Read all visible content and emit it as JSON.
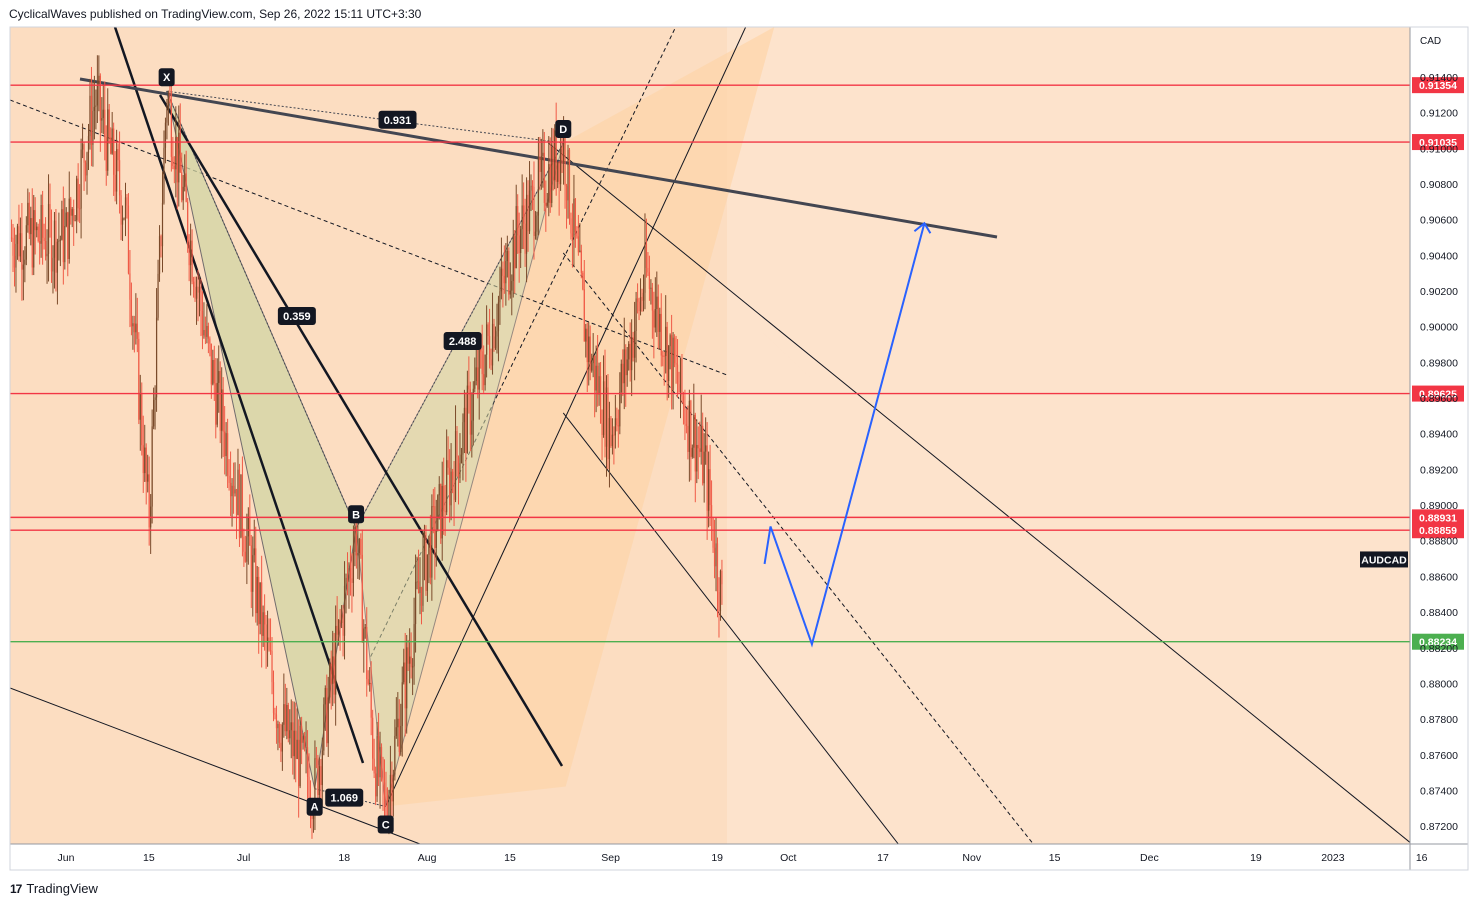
{
  "header": {
    "publisher_line": "CyclicalWaves published on TradingView.com, Sep 26, 2022 15:11 UTC+3:30"
  },
  "brand": {
    "label": "TradingView",
    "logo": "17"
  },
  "chart_data": {
    "type": "candlestick",
    "symbol": "AUDCAD",
    "currency": "CAD",
    "y_axis": {
      "ylim": [
        0.871,
        0.9168
      ],
      "ticks": [
        "0.87200",
        "0.87400",
        "0.87600",
        "0.87800",
        "0.88000",
        "0.88200",
        "0.88400",
        "0.88600",
        "0.88800",
        "0.89000",
        "0.89200",
        "0.89400",
        "0.89600",
        "0.89800",
        "0.90000",
        "0.90200",
        "0.90400",
        "0.90600",
        "0.90800",
        "0.91000",
        "0.91200",
        "0.91400"
      ],
      "tick_values": [
        0.872,
        0.874,
        0.876,
        0.878,
        0.88,
        0.882,
        0.884,
        0.886,
        0.888,
        0.89,
        0.892,
        0.894,
        0.896,
        0.898,
        0.9,
        0.902,
        0.904,
        0.906,
        0.908,
        0.91,
        0.912,
        0.914
      ]
    },
    "x_axis": {
      "ticks": [
        "Jun",
        "15",
        "Jul",
        "18",
        "Aug",
        "15",
        "Sep",
        "19",
        "Oct",
        "17",
        "Nov",
        "15",
        "Dec",
        "19",
        "2023",
        "16"
      ],
      "tick_days": [
        0,
        14,
        30,
        47,
        61,
        75,
        92,
        110,
        122,
        138,
        153,
        167,
        183,
        201,
        214,
        229
      ]
    },
    "price_lines": [
      {
        "label": "0.91354",
        "value": 0.91354,
        "color": "#f23645"
      },
      {
        "label": "0.91035",
        "value": 0.91035,
        "color": "#f23645"
      },
      {
        "label": "0.89625",
        "value": 0.89625,
        "color": "#f23645"
      },
      {
        "label": "0.88931",
        "value": 0.88931,
        "color": "#f23645"
      },
      {
        "label": "0.88859",
        "value": 0.88859,
        "color": "#f23645"
      },
      {
        "label": "0.88234",
        "value": 0.88234,
        "color": "#4caf50"
      }
    ],
    "symbol_tag": {
      "label": "AUDCAD",
      "value": 0.8874
    },
    "pattern_points": [
      {
        "label": "X",
        "day": 17,
        "value": 0.9132
      },
      {
        "label": "A",
        "day": 42,
        "value": 0.8741
      },
      {
        "label": "B",
        "day": 49,
        "value": 0.8887
      },
      {
        "label": "C",
        "day": 54,
        "value": 0.8731
      },
      {
        "label": "D",
        "day": 84,
        "value": 0.9103
      }
    ],
    "ratios": [
      {
        "label": "0.359",
        "day": 39,
        "value": 0.9006
      },
      {
        "label": "2.488",
        "day": 67,
        "value": 0.8992
      },
      {
        "label": "0.931",
        "day": 56,
        "value": 0.9116
      },
      {
        "label": "1.069",
        "day": 47,
        "value": 0.8736
      }
    ],
    "projection": [
      {
        "day": 118,
        "value": 0.8867
      },
      {
        "day": 119,
        "value": 0.8888
      },
      {
        "day": 126,
        "value": 0.8822
      },
      {
        "day": 145,
        "value": 0.9058
      }
    ],
    "colors": {
      "background": "#fde3cc",
      "channel_fill": "#fdd4a8",
      "pattern_fill": "#d2d6a4",
      "up_candle": "#7a4a2a",
      "down_candle": "#ef5a46",
      "projection": "#2962ff",
      "trendline": "#434651"
    }
  }
}
